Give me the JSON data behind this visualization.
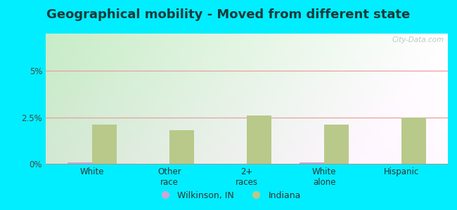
{
  "title": "Geographical mobility - Moved from different state",
  "categories": [
    "White",
    "Other\nrace",
    "2+\nraces",
    "White\nalone",
    "Hispanic"
  ],
  "wilkinson_values": [
    0.07,
    0.0,
    0.0,
    0.07,
    0.0
  ],
  "indiana_values": [
    2.1,
    1.8,
    2.6,
    2.1,
    2.5
  ],
  "wilkinson_color": "#c9a8d4",
  "indiana_color": "#b8c98a",
  "bar_width": 0.32,
  "ylim": [
    0,
    7.0
  ],
  "yticks": [
    0,
    2.5,
    5.0
  ],
  "ytick_labels": [
    "0%",
    "2.5%",
    "5%"
  ],
  "grid_25_color": "#e8a0a0",
  "grid_50_color": "#e8a0a0",
  "outer_bg": "#00eeff",
  "plot_bg_left": "#c8e8c0",
  "plot_bg_right": "#f0f8f0",
  "legend_wilkinson": "Wilkinson, IN",
  "legend_indiana": "Indiana",
  "title_fontsize": 13,
  "tick_fontsize": 8.5,
  "legend_fontsize": 9,
  "title_color": "#1a3a3a"
}
